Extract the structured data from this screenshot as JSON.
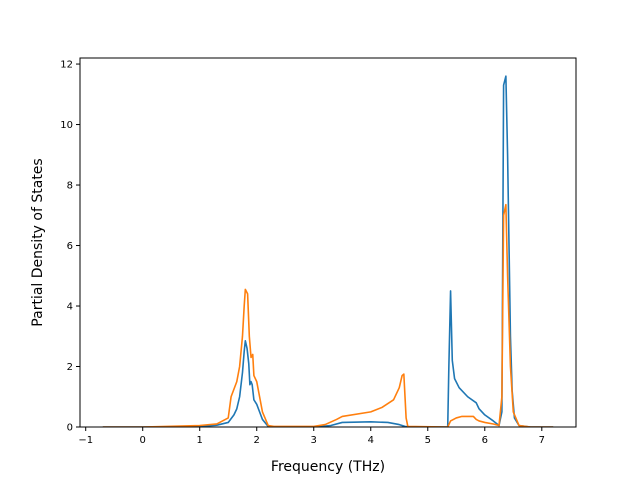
{
  "chart_data": {
    "type": "line",
    "title": "",
    "xlabel": "Frequency (THz)",
    "ylabel": "Partial Density of States",
    "xlim": [
      -1.1,
      7.6
    ],
    "ylim": [
      0,
      12.2
    ],
    "x_ticks": [
      -1,
      0,
      1,
      2,
      3,
      4,
      5,
      6,
      7
    ],
    "x_tick_labels": [
      "−1",
      "0",
      "1",
      "2",
      "3",
      "4",
      "5",
      "6",
      "7"
    ],
    "y_ticks": [
      0,
      2,
      4,
      6,
      8,
      10,
      12
    ],
    "y_tick_labels": [
      "0",
      "2",
      "4",
      "6",
      "8",
      "10",
      "12"
    ],
    "grid": false,
    "legend": "none",
    "series": [
      {
        "color": "#1f77b4",
        "points": [
          [
            -0.7,
            0
          ],
          [
            0.0,
            0
          ],
          [
            1.0,
            0.02
          ],
          [
            1.3,
            0.06
          ],
          [
            1.5,
            0.15
          ],
          [
            1.6,
            0.4
          ],
          [
            1.65,
            0.6
          ],
          [
            1.7,
            1.0
          ],
          [
            1.75,
            1.8
          ],
          [
            1.78,
            2.5
          ],
          [
            1.8,
            2.85
          ],
          [
            1.83,
            2.6
          ],
          [
            1.86,
            2.1
          ],
          [
            1.88,
            1.4
          ],
          [
            1.9,
            1.5
          ],
          [
            1.92,
            1.4
          ],
          [
            1.95,
            0.9
          ],
          [
            2.0,
            0.75
          ],
          [
            2.05,
            0.5
          ],
          [
            2.1,
            0.25
          ],
          [
            2.2,
            0.02
          ],
          [
            2.3,
            0
          ],
          [
            3.0,
            0
          ],
          [
            3.3,
            0.05
          ],
          [
            3.5,
            0.15
          ],
          [
            4.0,
            0.17
          ],
          [
            4.3,
            0.15
          ],
          [
            4.5,
            0.08
          ],
          [
            4.6,
            0.02
          ],
          [
            4.7,
            0
          ],
          [
            5.35,
            0
          ],
          [
            5.37,
            2.0
          ],
          [
            5.4,
            4.5
          ],
          [
            5.43,
            2.2
          ],
          [
            5.47,
            1.6
          ],
          [
            5.55,
            1.3
          ],
          [
            5.7,
            1.0
          ],
          [
            5.85,
            0.8
          ],
          [
            5.9,
            0.6
          ],
          [
            6.0,
            0.4
          ],
          [
            6.15,
            0.2
          ],
          [
            6.25,
            0.05
          ],
          [
            6.3,
            0.5
          ],
          [
            6.33,
            11.3
          ],
          [
            6.37,
            11.6
          ],
          [
            6.4,
            9.0
          ],
          [
            6.45,
            3.0
          ],
          [
            6.48,
            1.2
          ],
          [
            6.52,
            0.3
          ],
          [
            6.6,
            0.05
          ],
          [
            6.8,
            0
          ],
          [
            7.2,
            0
          ]
        ]
      },
      {
        "color": "#ff7f0e",
        "points": [
          [
            -0.7,
            0
          ],
          [
            0.0,
            0
          ],
          [
            1.0,
            0.05
          ],
          [
            1.3,
            0.1
          ],
          [
            1.5,
            0.3
          ],
          [
            1.55,
            1.0
          ],
          [
            1.65,
            1.5
          ],
          [
            1.7,
            2.0
          ],
          [
            1.75,
            3.0
          ],
          [
            1.78,
            4.0
          ],
          [
            1.8,
            4.55
          ],
          [
            1.84,
            4.4
          ],
          [
            1.87,
            3.0
          ],
          [
            1.9,
            2.3
          ],
          [
            1.93,
            2.4
          ],
          [
            1.95,
            1.7
          ],
          [
            2.0,
            1.5
          ],
          [
            2.05,
            1.0
          ],
          [
            2.1,
            0.5
          ],
          [
            2.2,
            0.05
          ],
          [
            2.3,
            0.02
          ],
          [
            3.0,
            0.02
          ],
          [
            3.2,
            0.08
          ],
          [
            3.4,
            0.25
          ],
          [
            3.5,
            0.35
          ],
          [
            4.0,
            0.5
          ],
          [
            4.2,
            0.65
          ],
          [
            4.4,
            0.9
          ],
          [
            4.5,
            1.3
          ],
          [
            4.55,
            1.7
          ],
          [
            4.58,
            1.75
          ],
          [
            4.62,
            0.3
          ],
          [
            4.65,
            0.02
          ],
          [
            5.35,
            0
          ],
          [
            5.4,
            0.2
          ],
          [
            5.5,
            0.3
          ],
          [
            5.6,
            0.35
          ],
          [
            5.8,
            0.35
          ],
          [
            5.85,
            0.25
          ],
          [
            5.9,
            0.2
          ],
          [
            6.0,
            0.15
          ],
          [
            6.15,
            0.1
          ],
          [
            6.25,
            0.05
          ],
          [
            6.3,
            1.0
          ],
          [
            6.33,
            7.0
          ],
          [
            6.37,
            7.35
          ],
          [
            6.4,
            5.0
          ],
          [
            6.45,
            2.0
          ],
          [
            6.5,
            0.5
          ],
          [
            6.6,
            0.05
          ],
          [
            6.8,
            0
          ],
          [
            7.2,
            0
          ]
        ]
      }
    ]
  }
}
